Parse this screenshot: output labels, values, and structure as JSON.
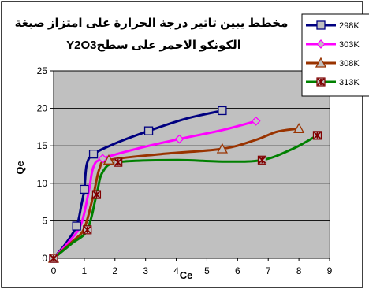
{
  "chart_data": {
    "type": "line",
    "title_lines": [
      "مخطط يبين تاثير درجة الحرارة على امتزاز صبغة",
      "الكونكو الاحمر على سطحY2O3"
    ],
    "xlabel": "Ce",
    "ylabel": "Qe",
    "xlim": [
      0,
      9
    ],
    "ylim": [
      0,
      25
    ],
    "xticks": [
      "0",
      "1",
      "2",
      "3",
      "4",
      "5",
      "6",
      "7",
      "8",
      "9"
    ],
    "yticks": [
      "0",
      "5",
      "10",
      "15",
      "20",
      "25"
    ],
    "plot_background": "#c0c0c0",
    "legend_position": "top-right",
    "series": [
      {
        "name": "298K",
        "color": "#000080",
        "marker": "square",
        "points": [
          [
            0,
            0
          ],
          [
            0.75,
            4.3
          ],
          [
            1.0,
            9.2
          ],
          [
            1.3,
            13.9
          ],
          [
            3.1,
            17.0
          ],
          [
            5.5,
            19.7
          ]
        ],
        "curve": [
          [
            0,
            0
          ],
          [
            0.4,
            2.0
          ],
          [
            0.75,
            4.3
          ],
          [
            0.9,
            7.0
          ],
          [
            1.0,
            9.2
          ],
          [
            1.08,
            12.5
          ],
          [
            1.3,
            13.9
          ],
          [
            2.0,
            15.3
          ],
          [
            3.1,
            17.0
          ],
          [
            4.3,
            18.6
          ],
          [
            5.5,
            19.7
          ]
        ]
      },
      {
        "name": "303K",
        "color": "#ff00ff",
        "marker": "diamond",
        "points": [
          [
            0,
            0
          ],
          [
            1.6,
            13.3
          ],
          [
            4.1,
            15.9
          ],
          [
            6.6,
            18.3
          ]
        ],
        "curve": [
          [
            0,
            0
          ],
          [
            0.5,
            2.2
          ],
          [
            0.9,
            4.6
          ],
          [
            1.15,
            9.0
          ],
          [
            1.3,
            12.2
          ],
          [
            1.6,
            13.3
          ],
          [
            2.8,
            14.7
          ],
          [
            4.1,
            15.9
          ],
          [
            5.5,
            17.1
          ],
          [
            6.6,
            18.3
          ]
        ]
      },
      {
        "name": "308K",
        "color": "#993300",
        "marker": "triangle",
        "points": [
          [
            0,
            0
          ],
          [
            1.8,
            13.1
          ],
          [
            5.5,
            14.6
          ],
          [
            8.0,
            17.3
          ]
        ],
        "curve": [
          [
            0,
            0
          ],
          [
            0.6,
            2.2
          ],
          [
            1.0,
            4.0
          ],
          [
            1.3,
            8.5
          ],
          [
            1.5,
            12.0
          ],
          [
            1.8,
            13.1
          ],
          [
            3.5,
            13.9
          ],
          [
            5.5,
            14.6
          ],
          [
            6.6,
            15.8
          ],
          [
            7.3,
            16.9
          ],
          [
            8.0,
            17.3
          ]
        ]
      },
      {
        "name": "313K",
        "color": "#008000",
        "marker": "star",
        "points": [
          [
            0,
            0
          ],
          [
            1.1,
            3.8
          ],
          [
            1.4,
            8.5
          ],
          [
            2.1,
            12.8
          ],
          [
            6.8,
            13.1
          ],
          [
            8.6,
            16.4
          ]
        ],
        "curve": [
          [
            0,
            0
          ],
          [
            0.6,
            2.0
          ],
          [
            1.1,
            3.8
          ],
          [
            1.4,
            8.5
          ],
          [
            1.6,
            11.5
          ],
          [
            2.1,
            12.8
          ],
          [
            4.0,
            13.1
          ],
          [
            5.5,
            12.9
          ],
          [
            6.8,
            13.1
          ],
          [
            7.8,
            14.6
          ],
          [
            8.6,
            16.4
          ]
        ]
      }
    ]
  }
}
